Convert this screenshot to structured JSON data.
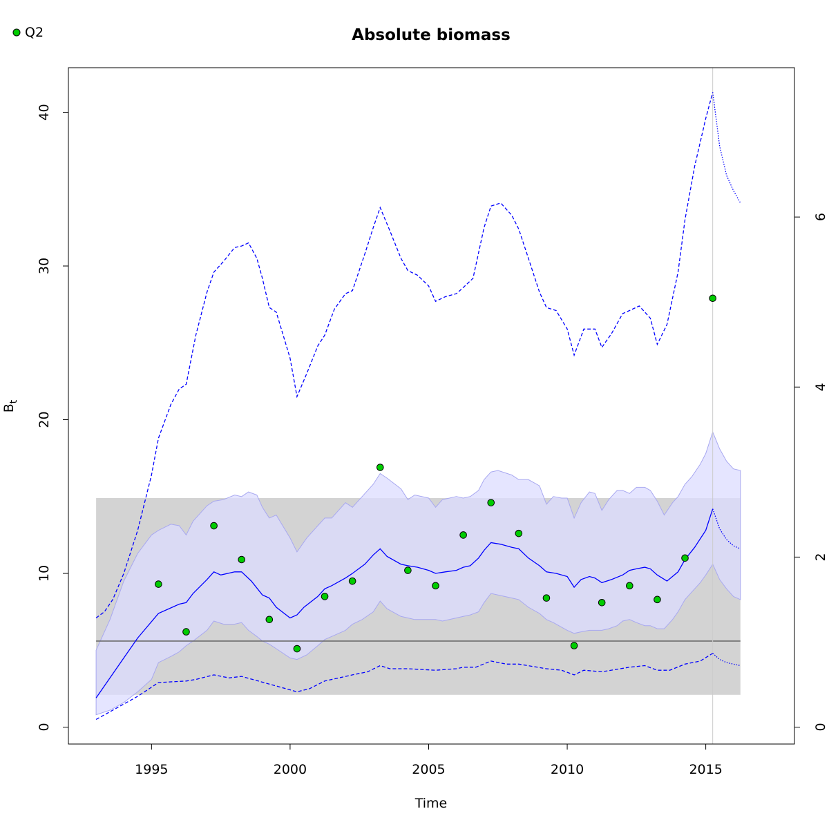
{
  "chart_data": {
    "type": "line",
    "title": "Absolute biomass",
    "xlabel": "Time",
    "ylabel": "B",
    "ylabel_subscript": "t",
    "xlim": [
      1992,
      2018.2
    ],
    "ylim": [
      -1.1,
      42.9
    ],
    "xticks": [
      1995,
      2000,
      2005,
      2010,
      2015
    ],
    "yticks": [
      0,
      10,
      20,
      30,
      40
    ],
    "y2ticks": [
      0,
      2,
      4,
      6
    ],
    "y2_per_y": 0.1808,
    "vline_x": 2015.25,
    "legend": {
      "position": "top-left",
      "entries": [
        {
          "label": "Q2",
          "color": "#00cc00"
        }
      ]
    },
    "reference": {
      "line_y": 5.6,
      "band_x": [
        1993.0,
        2016.25
      ],
      "band_y": [
        2.1,
        14.9
      ]
    },
    "colors": {
      "estimate": "#0000ff",
      "ci_fill": "#dcdcff",
      "band_fill": "#d3d3d3",
      "ref_line": "#6b6b6b",
      "points": "#00cc00",
      "vline": "#cccccc"
    },
    "series": [
      {
        "name": "Q2",
        "type": "scatter",
        "x": [
          1995.25,
          1996.25,
          1997.25,
          1998.25,
          1999.25,
          2000.25,
          2001.25,
          2002.25,
          2003.25,
          2004.25,
          2005.25,
          2006.25,
          2007.25,
          2008.25,
          2009.25,
          2010.25,
          2011.25,
          2012.25,
          2013.25,
          2014.25,
          2015.25
        ],
        "y": [
          9.3,
          6.2,
          13.1,
          10.9,
          7.0,
          5.1,
          8.5,
          9.5,
          16.9,
          10.2,
          9.2,
          12.5,
          14.6,
          12.6,
          8.4,
          5.3,
          8.1,
          9.2,
          8.3,
          11.0,
          27.9
        ]
      },
      {
        "type": "line",
        "style": "solid",
        "x": [
          1993.0,
          1993.5,
          1994.0,
          1994.5,
          1995.25,
          1996.0,
          1996.25,
          1996.5,
          1997.0,
          1997.25,
          1997.5,
          1998.0,
          1998.25,
          1998.6,
          1999.0,
          1999.25,
          1999.5,
          2000.0,
          2000.25,
          2000.5,
          2001.0,
          2001.25,
          2001.5,
          2002.0,
          2002.25,
          2002.7,
          2003.0,
          2003.25,
          2003.5,
          2004.0,
          2004.25,
          2004.6,
          2005.0,
          2005.25,
          2005.6,
          2006.0,
          2006.25,
          2006.5,
          2006.8,
          2007.0,
          2007.25,
          2007.6,
          2008.0,
          2008.25,
          2008.6,
          2009.0,
          2009.25,
          2009.6,
          2010.0,
          2010.25,
          2010.5,
          2010.8,
          2011.0,
          2011.25,
          2011.6,
          2012.0,
          2012.25,
          2012.5,
          2012.8,
          2013.0,
          2013.25,
          2013.6,
          2014.0,
          2014.25,
          2014.6,
          2015.0,
          2015.25
        ],
        "y": [
          1.9,
          3.2,
          4.5,
          5.8,
          7.4,
          8.0,
          8.1,
          8.7,
          9.6,
          10.1,
          9.9,
          10.1,
          10.1,
          9.5,
          8.6,
          8.4,
          7.8,
          7.1,
          7.3,
          7.8,
          8.5,
          9.0,
          9.2,
          9.7,
          10.0,
          10.6,
          11.2,
          11.6,
          11.1,
          10.6,
          10.5,
          10.4,
          10.2,
          10.0,
          10.1,
          10.2,
          10.4,
          10.5,
          11.0,
          11.5,
          12.0,
          11.9,
          11.7,
          11.6,
          11.0,
          10.5,
          10.1,
          10.0,
          9.8,
          9.1,
          9.6,
          9.8,
          9.7,
          9.4,
          9.6,
          9.9,
          10.2,
          10.3,
          10.4,
          10.3,
          9.9,
          9.5,
          10.1,
          10.9,
          11.7,
          12.8,
          14.2
        ]
      },
      {
        "type": "line",
        "style": "dotted",
        "x": [
          2015.25,
          2015.5,
          2015.75,
          2016.0,
          2016.25
        ],
        "y": [
          14.2,
          12.9,
          12.2,
          11.8,
          11.6
        ]
      },
      {
        "type": "line",
        "style": "dashed",
        "x": [
          1993.0,
          1993.3,
          1993.6,
          1994.0,
          1994.5,
          1995.0,
          1995.25,
          1995.7,
          1996.0,
          1996.25,
          1996.6,
          1997.0,
          1997.25,
          1997.6,
          1998.0,
          1998.25,
          1998.5,
          1998.8,
          1999.0,
          1999.25,
          1999.5,
          2000.0,
          2000.25,
          2000.6,
          2001.0,
          2001.25,
          2001.6,
          2002.0,
          2002.25,
          2002.7,
          2003.0,
          2003.25,
          2003.6,
          2004.0,
          2004.25,
          2004.6,
          2005.0,
          2005.25,
          2005.6,
          2006.0,
          2006.25,
          2006.6,
          2007.0,
          2007.25,
          2007.6,
          2008.0,
          2008.25,
          2008.6,
          2009.0,
          2009.25,
          2009.6,
          2010.0,
          2010.25,
          2010.6,
          2011.0,
          2011.25,
          2011.6,
          2012.0,
          2012.25,
          2012.6,
          2013.0,
          2013.25,
          2013.6,
          2014.0,
          2014.25,
          2014.6,
          2015.0,
          2015.25
        ],
        "y": [
          7.1,
          7.5,
          8.3,
          10.0,
          12.8,
          16.4,
          18.8,
          21.0,
          22.0,
          22.3,
          25.5,
          28.3,
          29.6,
          30.3,
          31.2,
          31.3,
          31.5,
          30.5,
          29.2,
          27.3,
          27.0,
          24.0,
          21.5,
          23.0,
          24.8,
          25.5,
          27.2,
          28.2,
          28.4,
          30.8,
          32.5,
          33.8,
          32.3,
          30.5,
          29.7,
          29.4,
          28.7,
          27.7,
          28.0,
          28.2,
          28.6,
          29.2,
          32.5,
          33.9,
          34.1,
          33.3,
          32.4,
          30.5,
          28.3,
          27.3,
          27.1,
          25.9,
          24.2,
          25.9,
          25.9,
          24.7,
          25.6,
          26.9,
          27.1,
          27.4,
          26.6,
          24.9,
          26.2,
          29.6,
          33.0,
          36.5,
          39.6,
          41.3
        ]
      },
      {
        "type": "line",
        "style": "dotted",
        "x": [
          2015.25,
          2015.5,
          2015.75,
          2016.0,
          2016.25
        ],
        "y": [
          41.3,
          37.8,
          35.9,
          34.9,
          34.1
        ]
      },
      {
        "type": "line",
        "style": "dashed",
        "x": [
          1993.0,
          1993.5,
          1994.0,
          1994.5,
          1995.25,
          1996.25,
          1996.6,
          1997.25,
          1997.8,
          1998.25,
          1999.25,
          2000.25,
          2000.7,
          2001.25,
          2002.25,
          2002.8,
          2003.25,
          2003.6,
          2004.25,
          2005.25,
          2006.0,
          2006.25,
          2006.7,
          2007.25,
          2007.8,
          2008.25,
          2009.25,
          2009.8,
          2010.25,
          2010.6,
          2011.25,
          2012.25,
          2012.8,
          2013.25,
          2013.7,
          2014.25,
          2014.8,
          2015.25
        ],
        "y": [
          0.5,
          1.0,
          1.5,
          2.0,
          2.9,
          3.0,
          3.1,
          3.4,
          3.2,
          3.3,
          2.8,
          2.3,
          2.5,
          3.0,
          3.4,
          3.6,
          4.0,
          3.8,
          3.8,
          3.7,
          3.8,
          3.9,
          3.9,
          4.3,
          4.1,
          4.1,
          3.8,
          3.7,
          3.4,
          3.7,
          3.6,
          3.9,
          4.0,
          3.7,
          3.7,
          4.1,
          4.3,
          4.8
        ]
      },
      {
        "type": "line",
        "style": "dotted",
        "x": [
          2015.25,
          2015.5,
          2015.75,
          2016.0,
          2016.25
        ],
        "y": [
          4.8,
          4.4,
          4.2,
          4.1,
          4.0
        ]
      },
      {
        "type": "area",
        "x": [
          1993.0,
          1993.5,
          1994.0,
          1994.5,
          1995.0,
          1995.25,
          1995.7,
          1996.0,
          1996.25,
          1996.5,
          1997.0,
          1997.25,
          1997.6,
          1998.0,
          1998.25,
          1998.5,
          1998.8,
          1999.0,
          1999.25,
          1999.5,
          2000.0,
          2000.25,
          2000.6,
          2001.0,
          2001.25,
          2001.5,
          2002.0,
          2002.25,
          2002.6,
          2003.0,
          2003.25,
          2003.5,
          2004.0,
          2004.25,
          2004.5,
          2005.0,
          2005.25,
          2005.5,
          2006.0,
          2006.25,
          2006.5,
          2006.8,
          2007.0,
          2007.25,
          2007.5,
          2008.0,
          2008.25,
          2008.6,
          2009.0,
          2009.25,
          2009.5,
          2009.8,
          2010.0,
          2010.25,
          2010.5,
          2010.8,
          2011.0,
          2011.25,
          2011.5,
          2011.8,
          2012.0,
          2012.25,
          2012.5,
          2012.8,
          2013.0,
          2013.25,
          2013.5,
          2013.8,
          2014.0,
          2014.25,
          2014.5,
          2014.8,
          2015.0,
          2015.25,
          2015.5,
          2015.75,
          2016.0,
          2016.25
        ],
        "upper": [
          5.0,
          7.0,
          9.5,
          11.3,
          12.5,
          12.8,
          13.2,
          13.1,
          12.5,
          13.4,
          14.4,
          14.7,
          14.8,
          15.1,
          15.0,
          15.3,
          15.1,
          14.3,
          13.6,
          13.8,
          12.3,
          11.4,
          12.3,
          13.1,
          13.6,
          13.6,
          14.6,
          14.3,
          15.0,
          15.8,
          16.5,
          16.2,
          15.5,
          14.8,
          15.1,
          14.9,
          14.3,
          14.8,
          15.0,
          14.9,
          15.0,
          15.4,
          16.1,
          16.6,
          16.7,
          16.4,
          16.1,
          16.1,
          15.7,
          14.5,
          15.0,
          14.9,
          14.9,
          13.6,
          14.6,
          15.3,
          15.2,
          14.1,
          14.8,
          15.4,
          15.4,
          15.2,
          15.6,
          15.6,
          15.4,
          14.7,
          13.8,
          14.6,
          15.0,
          15.8,
          16.3,
          17.1,
          17.8,
          19.2,
          18.1,
          17.3,
          16.8,
          16.7
        ],
        "lower": [
          0.8,
          1.1,
          1.6,
          2.3,
          3.1,
          4.2,
          4.6,
          4.9,
          5.3,
          5.6,
          6.3,
          6.9,
          6.7,
          6.7,
          6.8,
          6.3,
          5.9,
          5.6,
          5.4,
          5.1,
          4.5,
          4.4,
          4.7,
          5.3,
          5.7,
          5.9,
          6.3,
          6.7,
          7.0,
          7.5,
          8.2,
          7.7,
          7.2,
          7.1,
          7.0,
          7.0,
          7.0,
          6.9,
          7.1,
          7.2,
          7.3,
          7.5,
          8.1,
          8.7,
          8.6,
          8.4,
          8.3,
          7.8,
          7.4,
          7.0,
          6.8,
          6.5,
          6.3,
          6.1,
          6.2,
          6.3,
          6.3,
          6.3,
          6.4,
          6.6,
          6.9,
          7.0,
          6.8,
          6.6,
          6.6,
          6.4,
          6.4,
          7.0,
          7.5,
          8.3,
          8.8,
          9.4,
          9.9,
          10.6,
          9.6,
          9.0,
          8.5,
          8.3
        ]
      }
    ]
  }
}
